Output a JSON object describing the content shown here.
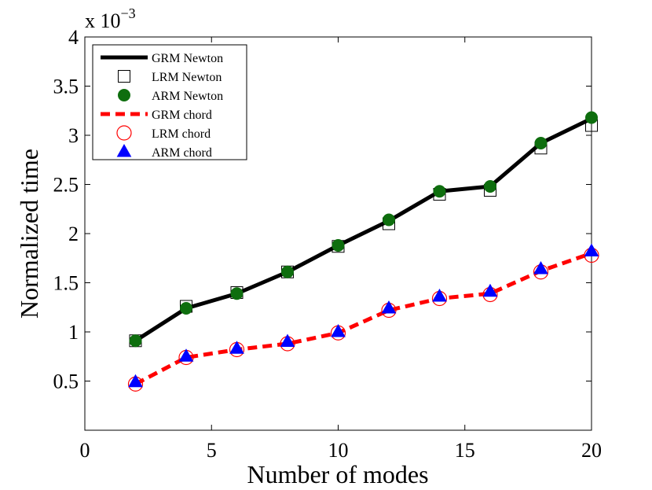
{
  "chart_data": {
    "type": "line",
    "title": "",
    "xlabel": "Number of modes",
    "ylabel": "Normalized time",
    "y_multiplier_label": "x 10",
    "y_multiplier_exponent": "−3",
    "xlim": [
      0,
      20
    ],
    "ylim": [
      0,
      4
    ],
    "xticks": [
      0,
      5,
      10,
      15,
      20
    ],
    "xtick_labels": [
      "0",
      "5",
      "10",
      "15",
      "20"
    ],
    "yticks": [
      0.5,
      1,
      1.5,
      2,
      2.5,
      3,
      3.5,
      4
    ],
    "ytick_labels": [
      "0.5",
      "1",
      "1.5",
      "2",
      "2.5",
      "3",
      "3.5",
      "4"
    ],
    "grid": false,
    "legend_position": "top-left",
    "x": [
      2,
      4,
      6,
      8,
      10,
      12,
      14,
      16,
      18,
      20
    ],
    "series": [
      {
        "name": "GRM Newton",
        "style": "solid-line",
        "color": "#000000",
        "values": [
          0.91,
          1.24,
          1.39,
          1.61,
          1.88,
          2.13,
          2.43,
          2.48,
          2.92,
          3.17
        ]
      },
      {
        "name": "LRM Newton",
        "style": "open-square",
        "color": "#000000",
        "values": [
          0.91,
          1.26,
          1.4,
          1.61,
          1.87,
          2.1,
          2.4,
          2.44,
          2.87,
          3.1
        ]
      },
      {
        "name": "ARM Newton",
        "style": "filled-circle",
        "color": "#0e6e0e",
        "values": [
          0.91,
          1.24,
          1.39,
          1.61,
          1.88,
          2.14,
          2.43,
          2.48,
          2.92,
          3.18
        ]
      },
      {
        "name": "GRM chord",
        "style": "dashed-line",
        "color": "#ff0000",
        "values": [
          0.47,
          0.74,
          0.82,
          0.88,
          0.99,
          1.22,
          1.34,
          1.39,
          1.62,
          1.8
        ]
      },
      {
        "name": "LRM chord",
        "style": "open-circle",
        "color": "#ff0000",
        "values": [
          0.47,
          0.74,
          0.82,
          0.88,
          0.99,
          1.22,
          1.34,
          1.38,
          1.61,
          1.78
        ]
      },
      {
        "name": "ARM chord",
        "style": "filled-triangle",
        "color": "#0000ff",
        "values": [
          0.49,
          0.75,
          0.83,
          0.9,
          1.0,
          1.24,
          1.36,
          1.41,
          1.64,
          1.82
        ]
      }
    ]
  }
}
